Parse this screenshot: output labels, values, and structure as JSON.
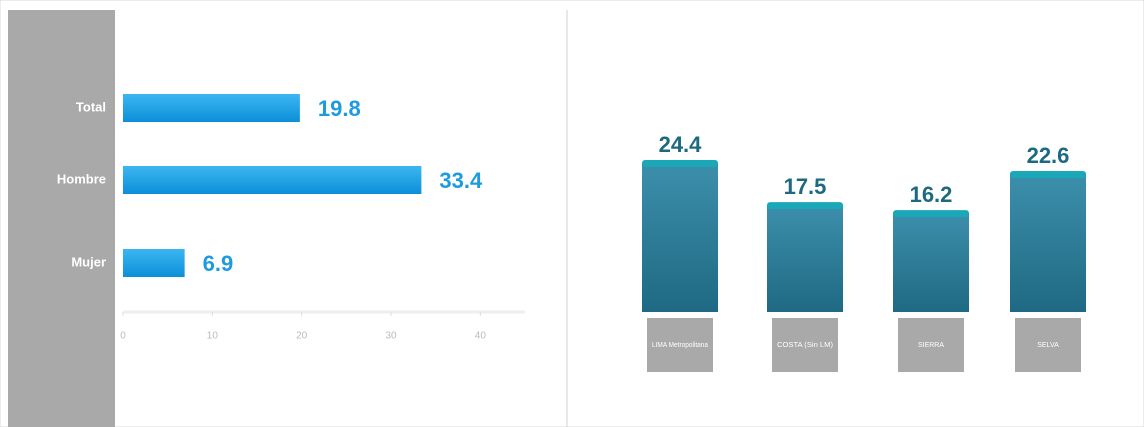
{
  "chart_data": [
    {
      "type": "hbar",
      "categories": [
        "Total",
        "Hombre",
        "Mujer"
      ],
      "values": [
        19.8,
        33.4,
        6.9
      ],
      "color": "#1ea0e6",
      "xlim": [
        0,
        45
      ],
      "xticks": [
        0,
        10,
        20,
        30,
        40
      ]
    },
    {
      "type": "bar",
      "categories": [
        "LIMA Metropolitana",
        "COSTA (Sin LM)",
        "SIERRA",
        "SELVA"
      ],
      "values": [
        24.4,
        17.5,
        16.2,
        22.6
      ],
      "color": "#2a7d98"
    }
  ]
}
